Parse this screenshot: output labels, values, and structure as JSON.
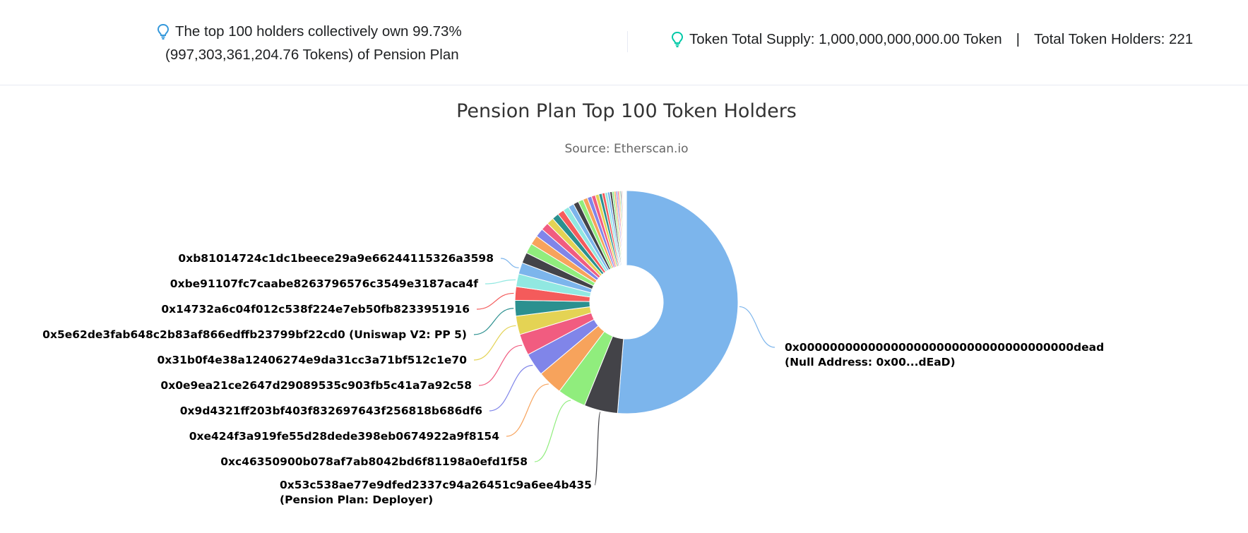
{
  "header": {
    "holders_line1": "The top 100 holders collectively own 99.73%",
    "holders_line2": "(997,303,361,204.76 Tokens) of Pension Plan",
    "total_supply": "Token Total Supply: 1,000,000,000,000.00 Token",
    "separator": "|",
    "total_holders": "Total Token Holders: 221",
    "icon_colors": {
      "left": "#3498db",
      "right": "#00c9a7"
    }
  },
  "chart_data": {
    "type": "pie",
    "title": "Pension Plan Top 100 Token Holders",
    "subtitle": "Source: Etherscan.io",
    "donut": true,
    "slices": [
      {
        "label": "0x000000000000000000000000000000000000dead",
        "label2": "(Null Address: 0x00...dEaD)",
        "value": 49.6,
        "color": "#7cb5ec"
      },
      {
        "label": "0x53c538ae77e9dfed2337c94a26451c9a6ee4b435",
        "label2": "(Pension Plan: Deployer)",
        "value": 4.7,
        "color": "#434348"
      },
      {
        "label": "0xc46350900b078af7ab8042bd6f81198a0efd1f58",
        "label2": "",
        "value": 4.0,
        "color": "#90ed7d"
      },
      {
        "label": "0xe424f3a919fe55d28dede398eb0674922a9f8154",
        "label2": "",
        "value": 3.5,
        "color": "#f7a35c"
      },
      {
        "label": "0x9d4321ff203bf403f832697643f256818b686df6",
        "label2": "",
        "value": 3.2,
        "color": "#8085e9"
      },
      {
        "label": "0x0e9ea21ce2647d29089535c903fb5c41a7a92c58",
        "label2": "",
        "value": 3.0,
        "color": "#f15c80"
      },
      {
        "label": "0x31b0f4e38a12406274e9da31cc3a71bf512c1e70",
        "label2": "",
        "value": 2.6,
        "color": "#e4d354"
      },
      {
        "label": "0x5e62de3fab648c2b83af866edffb23799bf22cd0 (Uniswap V2: PP 5)",
        "label2": "",
        "value": 2.2,
        "color": "#2b908f"
      },
      {
        "label": "0x14732a6c04f012c538f224e7eb50fb8233951916",
        "label2": "",
        "value": 1.9,
        "color": "#f45b5b"
      },
      {
        "label": "0xbe91107fc7caabe8263796576c3549e3187aca4f",
        "label2": "",
        "value": 1.8,
        "color": "#91e8e1"
      },
      {
        "label": "0xb81014724c1dc1beece29a9e66244115326a3598",
        "label2": "",
        "value": 1.6,
        "color": "#7cb5ec"
      },
      {
        "label": "",
        "label2": "",
        "value": 1.5,
        "color": "#434348"
      },
      {
        "label": "",
        "label2": "",
        "value": 1.4,
        "color": "#90ed7d"
      },
      {
        "label": "",
        "label2": "",
        "value": 1.3,
        "color": "#f7a35c"
      },
      {
        "label": "",
        "label2": "",
        "value": 1.2,
        "color": "#8085e9"
      },
      {
        "label": "",
        "label2": "",
        "value": 1.1,
        "color": "#f15c80"
      },
      {
        "label": "",
        "label2": "",
        "value": 1.0,
        "color": "#e4d354"
      },
      {
        "label": "",
        "label2": "",
        "value": 0.95,
        "color": "#2b908f"
      },
      {
        "label": "",
        "label2": "",
        "value": 0.9,
        "color": "#f45b5b"
      },
      {
        "label": "",
        "label2": "",
        "value": 0.85,
        "color": "#91e8e1"
      },
      {
        "label": "",
        "label2": "",
        "value": 0.8,
        "color": "#7cb5ec"
      },
      {
        "label": "",
        "label2": "",
        "value": 0.75,
        "color": "#434348"
      },
      {
        "label": "",
        "label2": "",
        "value": 0.7,
        "color": "#90ed7d"
      },
      {
        "label": "",
        "label2": "",
        "value": 0.65,
        "color": "#f7a35c"
      },
      {
        "label": "",
        "label2": "",
        "value": 0.6,
        "color": "#8085e9"
      },
      {
        "label": "",
        "label2": "",
        "value": 0.55,
        "color": "#f15c80"
      },
      {
        "label": "",
        "label2": "",
        "value": 0.5,
        "color": "#e4d354"
      },
      {
        "label": "",
        "label2": "",
        "value": 0.45,
        "color": "#2b908f"
      },
      {
        "label": "",
        "label2": "",
        "value": 0.4,
        "color": "#f45b5b"
      },
      {
        "label": "",
        "label2": "",
        "value": 0.37,
        "color": "#91e8e1"
      },
      {
        "label": "",
        "label2": "",
        "value": 0.34,
        "color": "#7cb5ec"
      },
      {
        "label": "",
        "label2": "",
        "value": 0.31,
        "color": "#434348"
      },
      {
        "label": "",
        "label2": "",
        "value": 0.28,
        "color": "#90ed7d"
      },
      {
        "label": "",
        "label2": "",
        "value": 0.25,
        "color": "#f7a35c"
      },
      {
        "label": "",
        "label2": "",
        "value": 0.22,
        "color": "#8085e9"
      },
      {
        "label": "",
        "label2": "",
        "value": 0.2,
        "color": "#f15c80"
      },
      {
        "label": "",
        "label2": "",
        "value": 0.18,
        "color": "#e4d354"
      },
      {
        "label": "",
        "label2": "",
        "value": 0.16,
        "color": "#2b908f"
      },
      {
        "label": "",
        "label2": "",
        "value": 0.14,
        "color": "#f45b5b"
      },
      {
        "label": "",
        "label2": "",
        "value": 0.12,
        "color": "#91e8e1"
      },
      {
        "label": "",
        "label2": "",
        "value": 0.1,
        "color": "#7cb5ec"
      },
      {
        "label": "",
        "label2": "",
        "value": 0.09,
        "color": "#434348"
      },
      {
        "label": "",
        "label2": "",
        "value": 0.08,
        "color": "#90ed7d"
      },
      {
        "label": "",
        "label2": "",
        "value": 0.07,
        "color": "#f7a35c"
      },
      {
        "label": "",
        "label2": "",
        "value": 0.06,
        "color": "#8085e9"
      },
      {
        "label": "",
        "label2": "",
        "value": 0.05,
        "color": "#f15c80"
      }
    ]
  }
}
